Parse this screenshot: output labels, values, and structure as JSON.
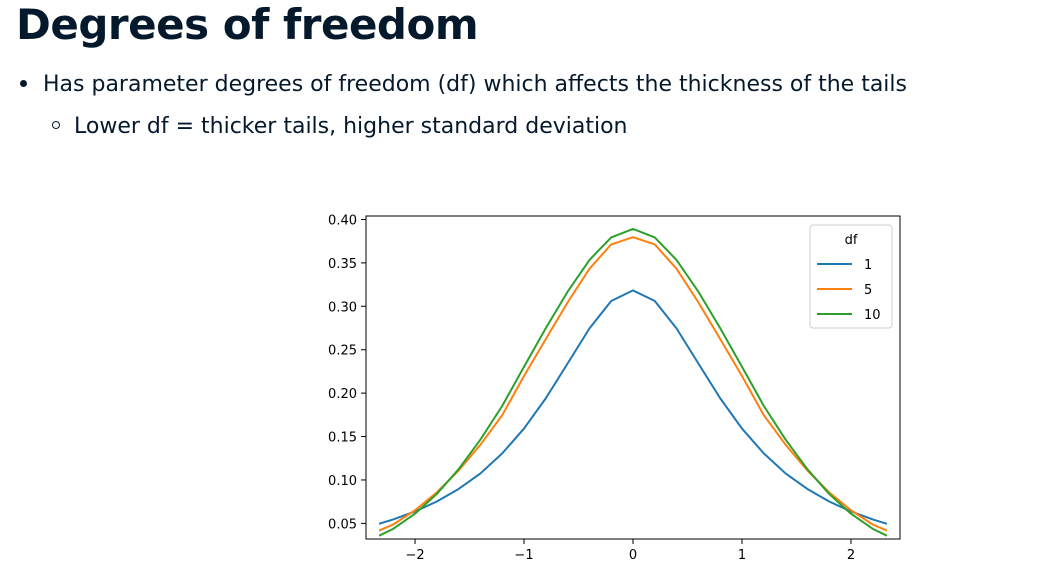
{
  "slide": {
    "title": "Degrees of freedom",
    "bullets": [
      {
        "text": "Has parameter degrees of freedom (df) which affects the thickness of the tails",
        "level": 1
      },
      {
        "text": "Lower df = thicker tails, higher standard deviation",
        "level": 2
      }
    ]
  },
  "chart_data": {
    "type": "line",
    "title": "",
    "xlabel": "",
    "ylabel": "",
    "xlim": [
      -2.45,
      2.45
    ],
    "ylim": [
      0.032,
      0.404
    ],
    "x_ticks": [
      -2,
      -1,
      0,
      1,
      2
    ],
    "x_tick_labels": [
      "−2",
      "−1",
      "0",
      "1",
      "2"
    ],
    "y_ticks": [
      0.05,
      0.1,
      0.15,
      0.2,
      0.25,
      0.3,
      0.35,
      0.4
    ],
    "y_tick_labels": [
      "0.05",
      "0.10",
      "0.15",
      "0.20",
      "0.25",
      "0.30",
      "0.35",
      "0.40"
    ],
    "grid": false,
    "legend": {
      "title": "df",
      "placement": "top-right"
    },
    "series": [
      {
        "name": "1",
        "color": "#1f77b4",
        "x": [
          -2.33,
          -2.2,
          -2.0,
          -1.8,
          -1.6,
          -1.4,
          -1.2,
          -1.0,
          -0.8,
          -0.6,
          -0.4,
          -0.2,
          0.0,
          0.2,
          0.4,
          0.6,
          0.8,
          1.0,
          1.2,
          1.4,
          1.6,
          1.8,
          2.0,
          2.2,
          2.33
        ],
        "y": [
          0.0495,
          0.0545,
          0.0637,
          0.0752,
          0.0896,
          0.1075,
          0.1306,
          0.1592,
          0.1941,
          0.2341,
          0.2744,
          0.3061,
          0.3183,
          0.3061,
          0.2744,
          0.2341,
          0.1941,
          0.1592,
          0.1306,
          0.1075,
          0.0896,
          0.0752,
          0.0637,
          0.0545,
          0.0495
        ]
      },
      {
        "name": "5",
        "color": "#ff7f0e",
        "x": [
          -2.33,
          -2.2,
          -2.0,
          -1.8,
          -1.6,
          -1.4,
          -1.2,
          -1.0,
          -0.8,
          -0.6,
          -0.4,
          -0.2,
          0.0,
          0.2,
          0.4,
          0.6,
          0.8,
          1.0,
          1.2,
          1.4,
          1.6,
          1.8,
          2.0,
          2.2,
          2.33
        ],
        "y": [
          0.0417,
          0.0487,
          0.0651,
          0.0857,
          0.1109,
          0.1406,
          0.1746,
          0.2197,
          0.2623,
          0.3045,
          0.3432,
          0.3713,
          0.3796,
          0.3713,
          0.3432,
          0.3045,
          0.2623,
          0.2197,
          0.1746,
          0.1406,
          0.1109,
          0.0857,
          0.0651,
          0.0487,
          0.0417
        ]
      },
      {
        "name": "10",
        "color": "#2ca02c",
        "x": [
          -2.33,
          -2.2,
          -2.0,
          -1.8,
          -1.6,
          -1.4,
          -1.2,
          -1.0,
          -0.8,
          -0.6,
          -0.4,
          -0.2,
          0.0,
          0.2,
          0.4,
          0.6,
          0.8,
          1.0,
          1.2,
          1.4,
          1.6,
          1.8,
          2.0,
          2.2,
          2.33
        ],
        "y": [
          0.0358,
          0.0437,
          0.0611,
          0.0839,
          0.1124,
          0.1465,
          0.1853,
          0.2304,
          0.2749,
          0.3168,
          0.3533,
          0.3793,
          0.3891,
          0.3793,
          0.3533,
          0.3168,
          0.2749,
          0.2304,
          0.1853,
          0.1465,
          0.1124,
          0.0839,
          0.0611,
          0.0437,
          0.0358
        ]
      }
    ]
  }
}
